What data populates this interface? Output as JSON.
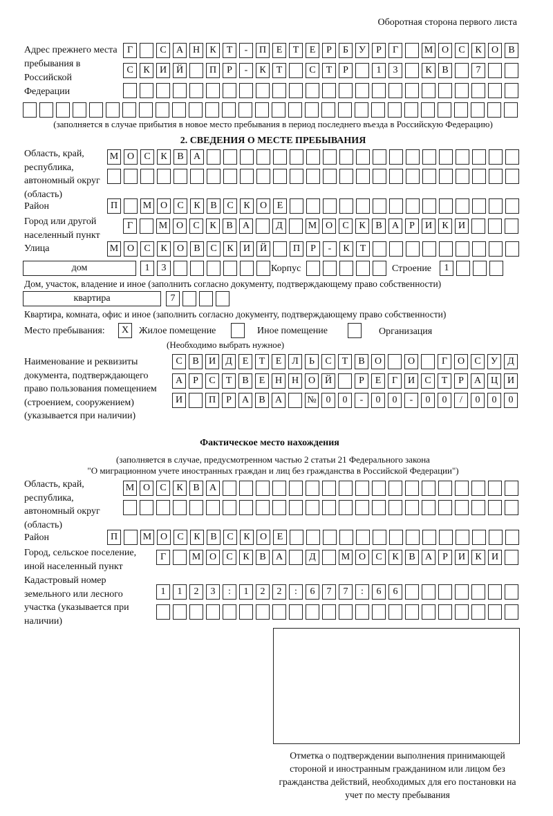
{
  "header": "Оборотная сторона первого листа",
  "prev_address": {
    "label": "Адрес прежнего места пребывания в Российской Федерации",
    "rows": [
      [
        "Г",
        "",
        "С",
        "А",
        "Н",
        "К",
        "Т",
        "-",
        "П",
        "Е",
        "Т",
        "Е",
        "Р",
        "Б",
        "У",
        "Р",
        "Г",
        "",
        "М",
        "О",
        "С",
        "К",
        "О",
        "В"
      ],
      [
        "С",
        "К",
        "И",
        "Й",
        "",
        "П",
        "Р",
        "-",
        "К",
        "Т",
        "",
        "С",
        "Т",
        "Р",
        "",
        "1",
        "3",
        "",
        "К",
        "В",
        "",
        "7",
        "",
        ""
      ],
      [
        "",
        "",
        "",
        "",
        "",
        "",
        "",
        "",
        "",
        "",
        "",
        "",
        "",
        "",
        "",
        "",
        "",
        "",
        "",
        "",
        "",
        "",
        "",
        ""
      ],
      [
        "",
        "",
        "",
        "",
        "",
        "",
        "",
        "",
        "",
        "",
        "",
        "",
        "",
        "",
        "",
        "",
        "",
        "",
        "",
        "",
        "",
        "",
        "",
        "",
        "",
        "",
        "",
        "",
        "",
        ""
      ]
    ],
    "note": "(заполняется в случае прибытия в новое место пребывания в период последнего въезда в Российскую Федерацию)"
  },
  "section2": {
    "title": "2. СВЕДЕНИЯ О МЕСТЕ ПРЕБЫВАНИЯ",
    "region_label": "Область, край, республика, автономный округ (область)",
    "region_rows": [
      [
        "М",
        "О",
        "С",
        "К",
        "В",
        "А",
        "",
        "",
        "",
        "",
        "",
        "",
        "",
        "",
        "",
        "",
        "",
        "",
        "",
        "",
        "",
        "",
        "",
        "",
        ""
      ],
      [
        "",
        "",
        "",
        "",
        "",
        "",
        "",
        "",
        "",
        "",
        "",
        "",
        "",
        "",
        "",
        "",
        "",
        "",
        "",
        "",
        "",
        "",
        "",
        "",
        ""
      ]
    ],
    "district_label": "Район",
    "district_row": [
      "П",
      "",
      "М",
      "О",
      "С",
      "К",
      "В",
      "С",
      "К",
      "О",
      "Е",
      "",
      "",
      "",
      "",
      "",
      "",
      "",
      "",
      "",
      "",
      "",
      "",
      "",
      ""
    ],
    "city_label": "Город или другой населенный пункт",
    "city_row": [
      "Г",
      "",
      "М",
      "О",
      "С",
      "К",
      "В",
      "А",
      "",
      "Д",
      "",
      "М",
      "О",
      "С",
      "К",
      "В",
      "А",
      "Р",
      "И",
      "К",
      "И",
      "",
      "",
      ""
    ],
    "street_label": "Улица",
    "street_row": [
      "М",
      "О",
      "С",
      "К",
      "О",
      "В",
      "С",
      "К",
      "И",
      "Й",
      "",
      "П",
      "Р",
      "-",
      "К",
      "Т",
      "",
      "",
      "",
      "",
      "",
      "",
      "",
      "",
      ""
    ],
    "house_type": "дом",
    "house_row": [
      "1",
      "3",
      "",
      "",
      "",
      "",
      "",
      ""
    ],
    "korpus_label": "Корпус",
    "korpus_row": [
      "",
      "",
      "",
      "",
      ""
    ],
    "building_label": "Строение",
    "building_row": [
      "1",
      "",
      "",
      ""
    ],
    "house_caption": "Дом, участок, владение и иное (заполнить согласно документу, подтверждающему право собственности)",
    "apt_type": "квартира",
    "apt_row": [
      "7",
      "",
      "",
      ""
    ],
    "apt_caption": "Квартира, комната, офис и иное (заполнить согласно документу, подтверждающему право собственности)",
    "stay_place": {
      "label": "Место пребывания:",
      "options": [
        {
          "label": "Жилое помещение",
          "mark": "X"
        },
        {
          "label": "Иное помещение",
          "mark": ""
        },
        {
          "label": "Организация",
          "mark": ""
        }
      ],
      "hint": "(Необходимо выбрать нужное)"
    },
    "doc_label": "Наименование и реквизиты документа, подтверждающего право пользования помещением (строением, сооружением) (указывается при наличии)",
    "doc_rows": [
      [
        "С",
        "В",
        "И",
        "Д",
        "Е",
        "Т",
        "Е",
        "Л",
        "Ь",
        "С",
        "Т",
        "В",
        "О",
        "",
        "О",
        "",
        "Г",
        "О",
        "С",
        "У",
        "Д"
      ],
      [
        "А",
        "Р",
        "С",
        "Т",
        "В",
        "Е",
        "Н",
        "Н",
        "О",
        "Й",
        "",
        "Р",
        "Е",
        "Г",
        "И",
        "С",
        "Т",
        "Р",
        "А",
        "Ц",
        "И"
      ],
      [
        "И",
        "",
        "П",
        "Р",
        "А",
        "В",
        "А",
        "",
        "№",
        "0",
        "0",
        "-",
        "0",
        "0",
        "-",
        "0",
        "0",
        "/",
        "0",
        "0",
        "0"
      ]
    ]
  },
  "actual": {
    "title": "Фактическое место нахождения",
    "note1": "(заполняется в случае, предусмотренном частью 2 статьи 21 Федерального закона",
    "note2": "\"О миграционном учете иностранных граждан и лиц без гражданства в Российской Федерации\")",
    "region_label": "Область, край, республика, автономный округ (область)",
    "region_rows": [
      [
        "М",
        "О",
        "С",
        "К",
        "В",
        "А",
        "",
        "",
        "",
        "",
        "",
        "",
        "",
        "",
        "",
        "",
        "",
        "",
        "",
        "",
        "",
        "",
        "",
        ""
      ],
      [
        "",
        "",
        "",
        "",
        "",
        "",
        "",
        "",
        "",
        "",
        "",
        "",
        "",
        "",
        "",
        "",
        "",
        "",
        "",
        "",
        "",
        "",
        "",
        ""
      ]
    ],
    "district_label": "Район",
    "district_row": [
      "П",
      "",
      "М",
      "О",
      "С",
      "К",
      "В",
      "С",
      "К",
      "О",
      "Е",
      "",
      "",
      "",
      "",
      "",
      "",
      "",
      "",
      "",
      "",
      "",
      "",
      "",
      ""
    ],
    "city_label": "Город, сельское поселение, иной населенный пункт",
    "city_row": [
      "Г",
      "",
      "М",
      "О",
      "С",
      "К",
      "В",
      "А",
      "",
      "Д",
      "",
      "М",
      "О",
      "С",
      "К",
      "В",
      "А",
      "Р",
      "И",
      "К",
      "И",
      ""
    ],
    "cadastral_label": "Кадастровый номер земельного или лесного участка (указывается при наличии)",
    "cadastral_rows": [
      [
        "1",
        "1",
        "2",
        "3",
        ":",
        "1",
        "2",
        "2",
        ":",
        "6",
        "7",
        "7",
        ":",
        "6",
        "6",
        "",
        "",
        "",
        "",
        "",
        "",
        ""
      ],
      [
        "",
        "",
        "",
        "",
        "",
        "",
        "",
        "",
        "",
        "",
        "",
        "",
        "",
        "",
        "",
        "",
        "",
        "",
        "",
        "",
        "",
        ""
      ]
    ]
  },
  "confirmation_caption": "Отметка о подтверждении выполнения принимающей стороной и иностранным гражданином или лицом без гражданства действий, необходимых для его постановки на учет по месту пребывания"
}
